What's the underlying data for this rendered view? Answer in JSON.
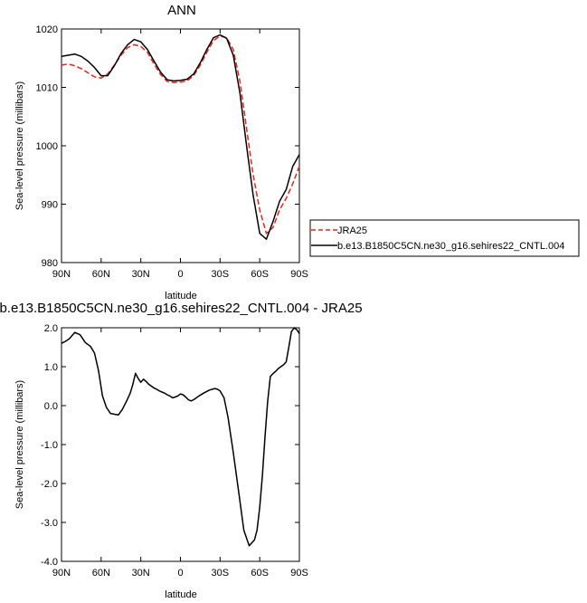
{
  "chart_data": [
    {
      "type": "line",
      "title": "ANN",
      "xlabel": "latitude",
      "ylabel": "Sea-level pressure (millibars)",
      "xlim": [
        90,
        -90
      ],
      "ylim": [
        980,
        1020
      ],
      "x_ticks": [
        90,
        60,
        30,
        0,
        -30,
        -60,
        -90
      ],
      "x_tick_labels": [
        "90N",
        "60N",
        "30N",
        "0",
        "30S",
        "60S",
        "90S"
      ],
      "y_ticks": [
        980,
        990,
        1000,
        1010,
        1020
      ],
      "y_tick_labels": [
        "980",
        "990",
        "1000",
        "1010",
        "1020"
      ],
      "legend_position": "right",
      "series": [
        {
          "name": "JRA25",
          "color": "#e8231e",
          "dash": true,
          "x": [
            90,
            85,
            80,
            75,
            70,
            65,
            60,
            55,
            50,
            45,
            40,
            35,
            30,
            25,
            20,
            15,
            10,
            5,
            0,
            -5,
            -10,
            -15,
            -20,
            -25,
            -30,
            -35,
            -40,
            -45,
            -50,
            -55,
            -60,
            -65,
            -70,
            -75,
            -80,
            -85,
            -90
          ],
          "y": [
            1013.8,
            1014.0,
            1013.7,
            1013.2,
            1012.5,
            1011.8,
            1011.6,
            1012.3,
            1013.8,
            1015.5,
            1016.8,
            1017.3,
            1017.0,
            1016.0,
            1014.0,
            1012.2,
            1011.0,
            1010.8,
            1010.9,
            1011.1,
            1012.0,
            1013.8,
            1016.0,
            1018.0,
            1018.8,
            1018.5,
            1016.5,
            1011.0,
            1003.0,
            995.0,
            989.0,
            985.0,
            986.0,
            989.0,
            991.0,
            993.5,
            996.5
          ]
        },
        {
          "name": "b.e13.B1850C5CN.ne30_g16.sehires22_CNTL.004",
          "color": "#000000",
          "dash": false,
          "x": [
            90,
            85,
            80,
            75,
            70,
            65,
            60,
            55,
            50,
            45,
            40,
            35,
            30,
            25,
            20,
            15,
            10,
            5,
            0,
            -5,
            -10,
            -15,
            -20,
            -25,
            -30,
            -35,
            -40,
            -45,
            -50,
            -55,
            -60,
            -65,
            -70,
            -75,
            -80,
            -85,
            -90
          ],
          "y": [
            1015.3,
            1015.5,
            1015.7,
            1015.3,
            1014.5,
            1013.4,
            1012.0,
            1012.0,
            1013.7,
            1015.8,
            1017.3,
            1018.2,
            1017.8,
            1016.5,
            1014.5,
            1012.6,
            1011.3,
            1011.1,
            1011.2,
            1011.4,
            1012.3,
            1014.2,
            1016.5,
            1018.5,
            1019.0,
            1018.4,
            1015.5,
            1009.0,
            1000.0,
            991.5,
            985.0,
            984.0,
            987.0,
            990.5,
            992.5,
            996.5,
            998.5
          ]
        }
      ]
    },
    {
      "type": "line",
      "title": "b.e13.B1850C5CN.ne30_g16.sehires22_CNTL.004 - JRA25",
      "xlabel": "latitude",
      "ylabel": "Sea-level pressure (millibars)",
      "xlim": [
        90,
        -90
      ],
      "ylim": [
        -4.0,
        2.0
      ],
      "x_ticks": [
        90,
        60,
        30,
        0,
        -30,
        -60,
        -90
      ],
      "x_tick_labels": [
        "90N",
        "60N",
        "30N",
        "0",
        "30S",
        "60S",
        "90S"
      ],
      "y_ticks": [
        -4.0,
        -3.0,
        -2.0,
        -1.0,
        0.0,
        1.0,
        2.0
      ],
      "y_tick_labels": [
        "-4.0",
        "-3.0",
        "-2.0",
        "-1.0",
        "0.0",
        "1.0",
        "2.0"
      ],
      "series": [
        {
          "color": "#000000",
          "x": [
            90,
            87,
            84,
            80,
            76,
            72,
            68,
            65,
            62,
            59,
            56,
            53,
            50,
            47,
            44,
            41,
            38,
            36,
            34,
            32,
            30,
            28,
            26,
            24,
            22,
            20,
            18,
            16,
            14,
            12,
            10,
            8,
            6,
            4,
            2,
            0,
            -2,
            -4,
            -6,
            -8,
            -10,
            -14,
            -18,
            -22,
            -26,
            -28,
            -30,
            -33,
            -36,
            -40,
            -44,
            -48,
            -52,
            -56,
            -58,
            -60,
            -62,
            -64,
            -66,
            -68,
            -70,
            -72,
            -74,
            -76,
            -78,
            -80,
            -82,
            -84,
            -86,
            -88,
            -90
          ],
          "y": [
            1.6,
            1.65,
            1.72,
            1.88,
            1.82,
            1.62,
            1.52,
            1.35,
            0.9,
            0.25,
            -0.05,
            -0.2,
            -0.22,
            -0.24,
            -0.1,
            0.1,
            0.32,
            0.55,
            0.83,
            0.7,
            0.6,
            0.68,
            0.62,
            0.55,
            0.5,
            0.45,
            0.42,
            0.38,
            0.35,
            0.32,
            0.28,
            0.25,
            0.2,
            0.22,
            0.25,
            0.3,
            0.28,
            0.22,
            0.15,
            0.12,
            0.15,
            0.25,
            0.33,
            0.4,
            0.44,
            0.42,
            0.38,
            0.2,
            -0.3,
            -1.2,
            -2.2,
            -3.2,
            -3.6,
            -3.45,
            -3.2,
            -2.6,
            -1.8,
            -0.8,
            0.1,
            0.75,
            0.82,
            0.88,
            0.95,
            1.0,
            1.05,
            1.12,
            1.5,
            1.9,
            2.0,
            1.95,
            1.85
          ]
        }
      ]
    }
  ]
}
